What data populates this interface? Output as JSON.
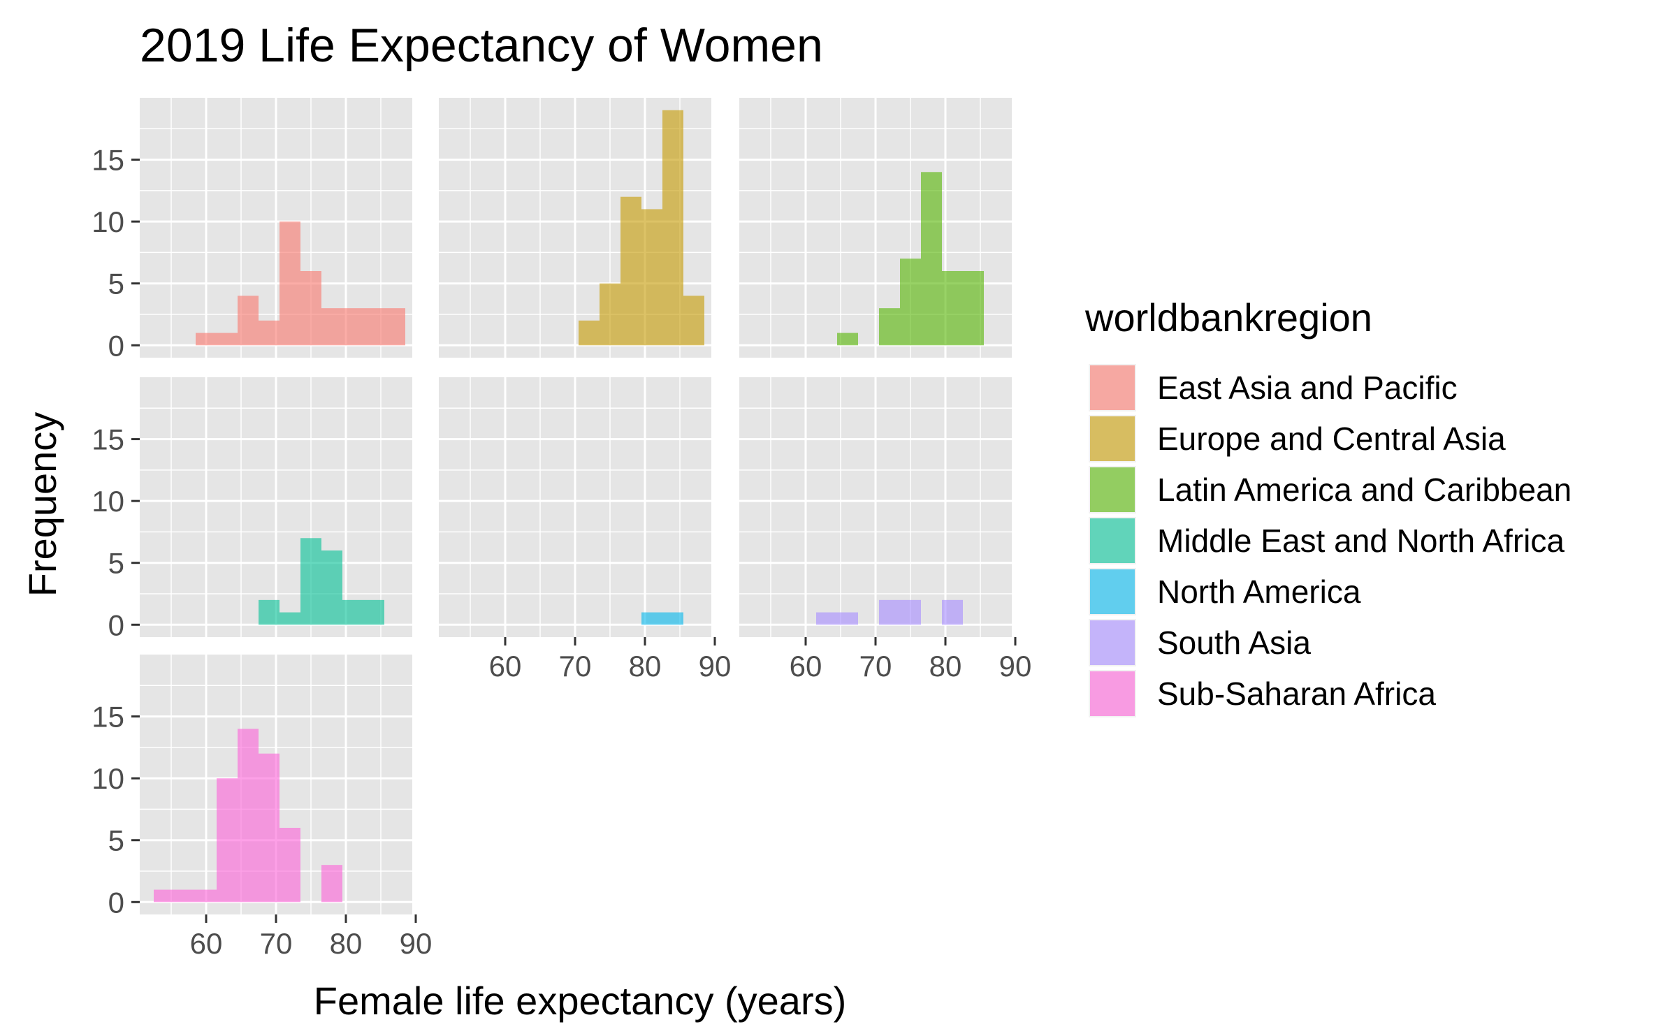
{
  "chart_data": {
    "type": "histogram",
    "title": "2019 Life Expectancy of Women",
    "xlabel": "Female life expectancy (years)",
    "ylabel": "Frequency",
    "xlim": [
      50.5,
      89.5
    ],
    "ylim": [
      -1,
      20
    ],
    "x_ticks": [
      60,
      70,
      80,
      90
    ],
    "y_ticks": [
      0,
      5,
      10,
      15
    ],
    "bin_width": 3,
    "facet_layout": "3x3 wrap",
    "panel_background": "#e5e5e5",
    "grid_color": "#ffffff",
    "bar_opacity": 0.6,
    "legend": {
      "title": "worldbankregion",
      "position": "right"
    },
    "series": [
      {
        "name": "East Asia and Pacific",
        "color": "#F8766D",
        "bins": [
          [
            58.5,
            61.5,
            1
          ],
          [
            61.5,
            64.5,
            1
          ],
          [
            64.5,
            67.5,
            4
          ],
          [
            67.5,
            70.5,
            2
          ],
          [
            70.5,
            73.5,
            10
          ],
          [
            73.5,
            76.5,
            6
          ],
          [
            76.5,
            79.5,
            3
          ],
          [
            79.5,
            82.5,
            3
          ],
          [
            82.5,
            85.5,
            3
          ],
          [
            85.5,
            88.5,
            3
          ]
        ]
      },
      {
        "name": "Europe and Central Asia",
        "color": "#C49A00",
        "bins": [
          [
            70.5,
            73.5,
            2
          ],
          [
            73.5,
            76.5,
            5
          ],
          [
            76.5,
            79.5,
            12
          ],
          [
            79.5,
            82.5,
            11
          ],
          [
            82.5,
            85.5,
            19
          ],
          [
            85.5,
            88.5,
            4
          ]
        ]
      },
      {
        "name": "Latin America and Caribbean",
        "color": "#53B400",
        "bins": [
          [
            64.5,
            67.5,
            1
          ],
          [
            70.5,
            73.5,
            3
          ],
          [
            73.5,
            76.5,
            7
          ],
          [
            76.5,
            79.5,
            14
          ],
          [
            79.5,
            82.5,
            6
          ],
          [
            82.5,
            85.5,
            6
          ]
        ]
      },
      {
        "name": "Middle East and North Africa",
        "color": "#00C094",
        "bins": [
          [
            67.5,
            70.5,
            2
          ],
          [
            70.5,
            73.5,
            1
          ],
          [
            73.5,
            76.5,
            7
          ],
          [
            76.5,
            79.5,
            6
          ],
          [
            79.5,
            82.5,
            2
          ],
          [
            82.5,
            85.5,
            2
          ]
        ]
      },
      {
        "name": "North America",
        "color": "#00B6EB",
        "bins": [
          [
            79.5,
            82.5,
            1
          ],
          [
            82.5,
            85.5,
            1
          ]
        ]
      },
      {
        "name": "South Asia",
        "color": "#A58AFF",
        "bins": [
          [
            61.5,
            64.5,
            1
          ],
          [
            64.5,
            67.5,
            1
          ],
          [
            70.5,
            73.5,
            2
          ],
          [
            73.5,
            76.5,
            2
          ],
          [
            79.5,
            82.5,
            2
          ]
        ]
      },
      {
        "name": "Sub-Saharan Africa",
        "color": "#FB61D7",
        "bins": [
          [
            52.5,
            55.5,
            1
          ],
          [
            55.5,
            58.5,
            1
          ],
          [
            58.5,
            61.5,
            1
          ],
          [
            61.5,
            64.5,
            10
          ],
          [
            64.5,
            67.5,
            14
          ],
          [
            67.5,
            70.5,
            12
          ],
          [
            70.5,
            73.5,
            6
          ],
          [
            76.5,
            79.5,
            3
          ]
        ]
      }
    ]
  }
}
